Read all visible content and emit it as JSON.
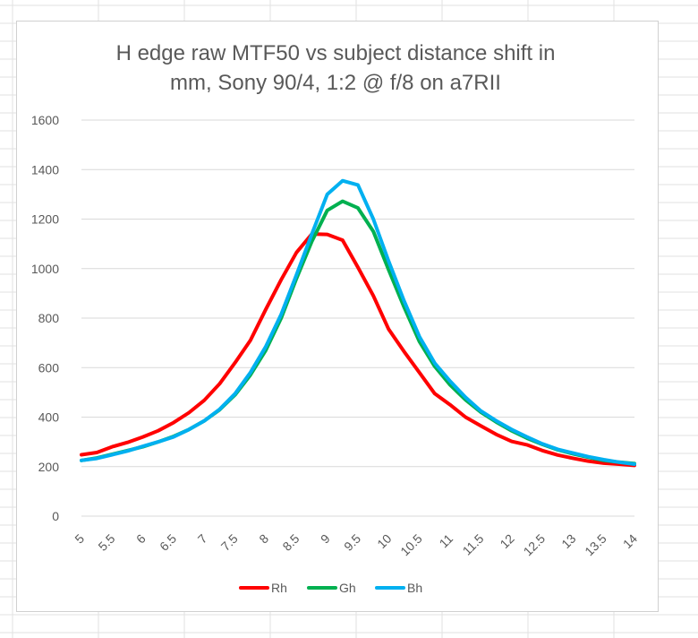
{
  "chart_data": {
    "type": "line",
    "title_lines": [
      "H edge raw MTF50 vs subject distance shift in",
      "mm, Sony 90/4, 1:2 @ f/8 on a7RII"
    ],
    "xlabel": "",
    "ylabel": "",
    "ylim": [
      0,
      1600
    ],
    "y_ticks": [
      "0",
      "200",
      "400",
      "600",
      "800",
      "1000",
      "1200",
      "1400",
      "1600"
    ],
    "x_tick_labels": [
      "5",
      "5.5",
      "6",
      "6.5",
      "7",
      "7.5",
      "8",
      "8.5",
      "9",
      "9.5",
      "10",
      "10.5",
      "11",
      "11.5",
      "12",
      "12.5",
      "13",
      "13.5",
      "14"
    ],
    "x": [
      5,
      5.25,
      5.5,
      5.75,
      6,
      6.25,
      6.5,
      6.75,
      7,
      7.25,
      7.5,
      7.75,
      8,
      8.25,
      8.5,
      8.75,
      9,
      9.25,
      9.5,
      9.75,
      10,
      10.25,
      10.5,
      10.75,
      11,
      11.25,
      11.5,
      11.75,
      12,
      12.25,
      12.5,
      12.75,
      13,
      13.25,
      13.5,
      13.75,
      14
    ],
    "grid": true,
    "legend_position": "bottom",
    "series": [
      {
        "name": "Rh",
        "color": "#ff0000",
        "values": [
          248,
          257,
          280,
          298,
          320,
          345,
          378,
          418,
          468,
          535,
          620,
          710,
          835,
          955,
          1065,
          1140,
          1138,
          1115,
          1005,
          890,
          755,
          665,
          580,
          495,
          450,
          400,
          365,
          330,
          302,
          288,
          265,
          247,
          234,
          222,
          214,
          210,
          205
        ]
      },
      {
        "name": "Gh",
        "color": "#00b050",
        "values": [
          225,
          235,
          250,
          265,
          280,
          300,
          322,
          350,
          385,
          430,
          490,
          570,
          670,
          800,
          960,
          1110,
          1235,
          1272,
          1245,
          1150,
          995,
          845,
          705,
          605,
          530,
          470,
          420,
          380,
          345,
          315,
          290,
          268,
          252,
          238,
          225,
          218,
          212
        ]
      },
      {
        "name": "Bh",
        "color": "#00b0f0",
        "values": [
          225,
          233,
          248,
          263,
          282,
          300,
          320,
          350,
          385,
          432,
          495,
          580,
          685,
          815,
          975,
          1140,
          1300,
          1355,
          1338,
          1200,
          1030,
          870,
          725,
          618,
          545,
          480,
          425,
          385,
          350,
          320,
          292,
          270,
          255,
          240,
          228,
          218,
          210
        ]
      }
    ]
  }
}
